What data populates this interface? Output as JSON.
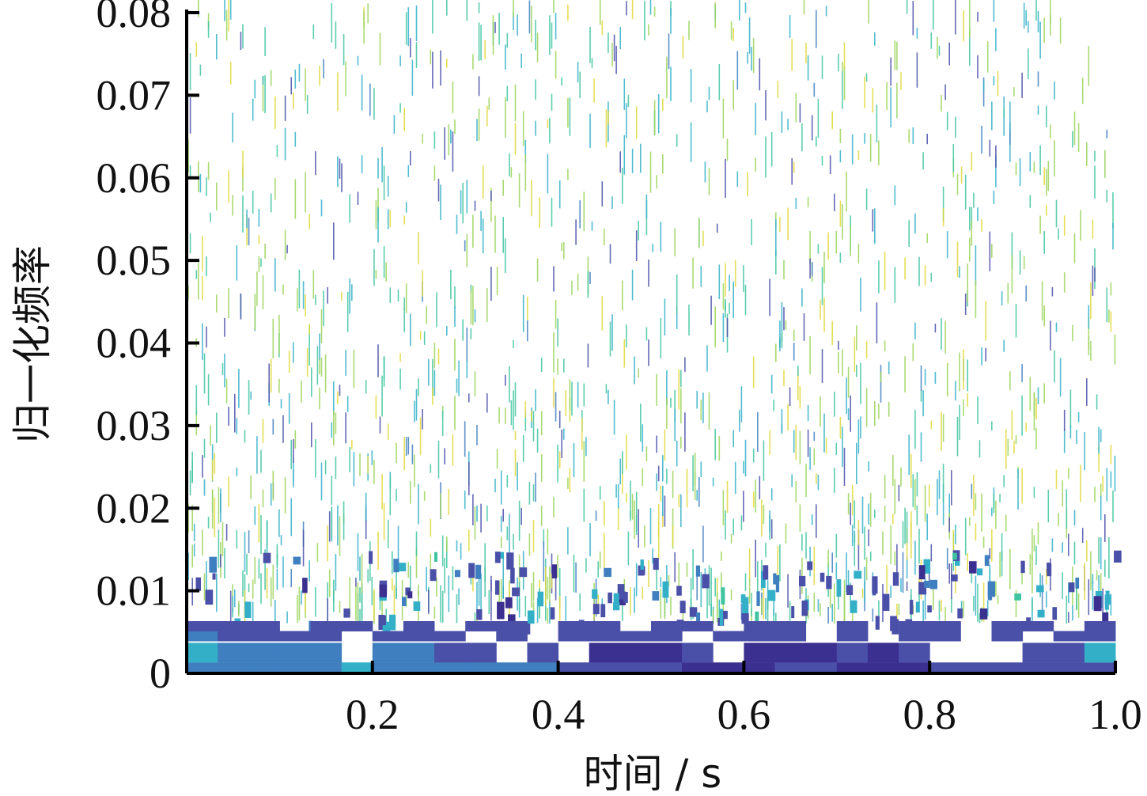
{
  "chart_data": {
    "type": "heatmap",
    "title": "",
    "xlabel": "时间 / s",
    "ylabel": "归一化频率",
    "xlim": [
      0.0,
      1.0
    ],
    "ylim": [
      0,
      0.08
    ],
    "x_ticks": [
      "0.2",
      "0.4",
      "0.6",
      "0.8",
      "1.0"
    ],
    "x_tick_values": [
      0.2,
      0.4,
      0.6,
      0.8,
      1.0
    ],
    "y_ticks": [
      "0",
      "0.01",
      "0.02",
      "0.03",
      "0.04",
      "0.05",
      "0.06",
      "0.07",
      "0.08"
    ],
    "y_tick_values": [
      0,
      0.01,
      0.02,
      0.03,
      0.04,
      0.05,
      0.06,
      0.07,
      0.08
    ],
    "grid": false,
    "colormap": [
      "#3b2f8f",
      "#4a4fa8",
      "#3f7fc0",
      "#33b0c8",
      "#3fc4a0",
      "#9bd45a",
      "#e0d83a"
    ],
    "background": "#ffffff",
    "band_rows": [
      {
        "freq": 0.0007,
        "values": [
          0.35,
          0.35,
          0.35,
          0.4,
          0.4,
          0.45,
          0.4,
          0.38,
          0.35,
          0.3,
          0.3,
          0.3,
          0.2,
          0.15,
          0.12,
          0.1,
          0.08,
          0.08,
          0.08,
          0.1,
          0.1,
          0.08,
          0.08,
          0.08,
          0.1,
          0.1,
          0.12,
          0.15,
          0.18,
          0.2
        ]
      },
      {
        "freq": 0.0025,
        "values": [
          0.55,
          0.3,
          0.3,
          0.3,
          0.3,
          0.0,
          0.25,
          0.3,
          0.15,
          0.2,
          0.0,
          0.15,
          0.0,
          0.05,
          0.06,
          0.08,
          0.1,
          0.0,
          0.05,
          0.05,
          0.05,
          0.1,
          0.05,
          0.1,
          0.0,
          0.0,
          0.0,
          0.2,
          0.15,
          0.45
        ]
      },
      {
        "freq": 0.0045,
        "values": [
          0.3,
          0.15,
          0.15,
          0.1,
          0.1,
          0.0,
          0.2,
          0.1,
          0.1,
          0.0,
          0.12,
          0.0,
          0.15,
          0.2,
          0.15,
          0.1,
          0.0,
          0.12,
          0.1,
          0.15,
          0.0,
          0.1,
          0.0,
          0.15,
          0.1,
          0.0,
          0.1,
          0.0,
          0.15,
          0.2
        ]
      },
      {
        "freq": 0.0057,
        "values": [
          0.2,
          0.1,
          0.1,
          0.0,
          0.2,
          0.1,
          0.0,
          0.1,
          0.0,
          0.2,
          0.1,
          0.0,
          0.15,
          0.1,
          0.0,
          0.2,
          0.1,
          0.0,
          0.1,
          0.2,
          0.0,
          0.1,
          0.0,
          0.2,
          0.1,
          0.0,
          0.15,
          0.1,
          0.0,
          0.1
        ]
      }
    ],
    "scatter_density": {
      "low_freq_max": 0.015,
      "high_freq_max": 0.08,
      "note": ""
    }
  }
}
